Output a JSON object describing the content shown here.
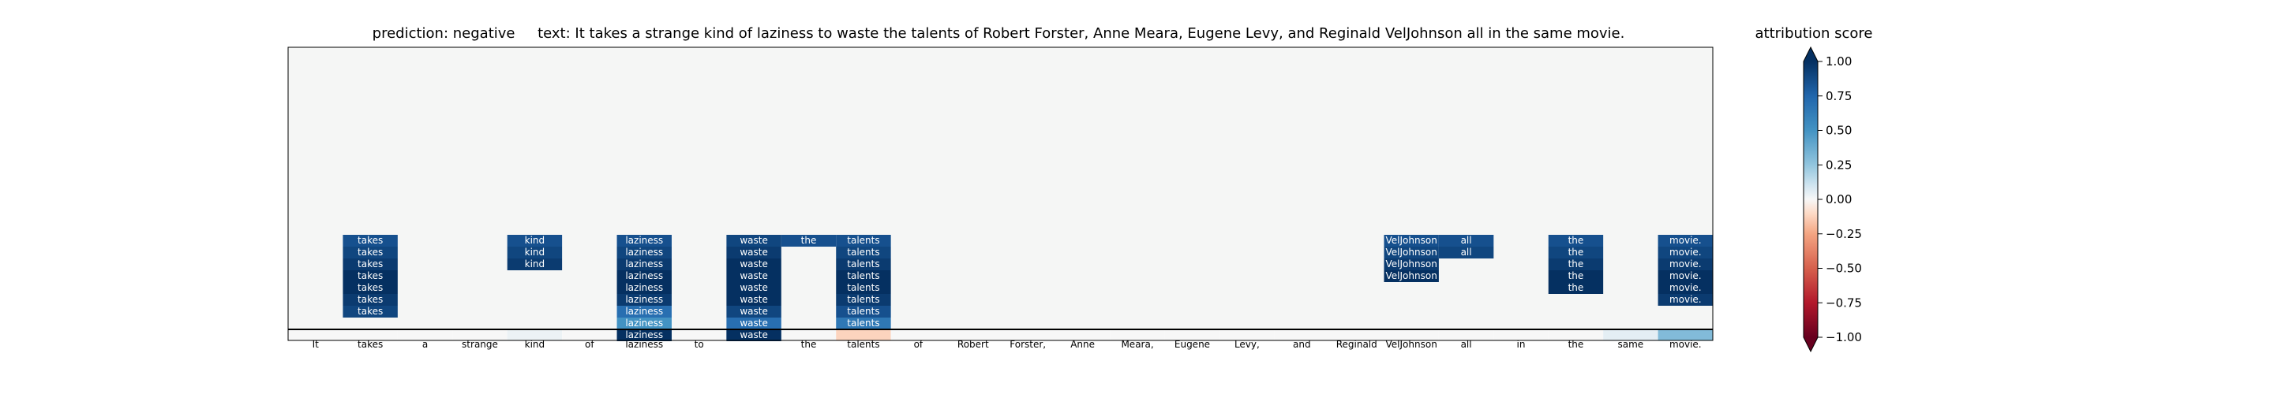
{
  "header": {
    "prediction_label": "prediction:",
    "prediction_value": "negative",
    "text_label": "text:",
    "text_value": "It takes a strange kind of laziness to waste the talents of Robert Forster, Anne Meara, Eugene Levy, and Reginald VelJohnson all in the same movie."
  },
  "chart_data": {
    "type": "heatmap",
    "tokens": [
      "It",
      "takes",
      "a",
      "strange",
      "kind",
      "of",
      "laziness",
      "to",
      "waste",
      "the",
      "talents",
      "of",
      "Robert",
      "Forster,",
      "Anne",
      "Meara,",
      "Eugene",
      "Levy,",
      "and",
      "Reginald",
      "VelJohnson",
      "all",
      "in",
      "the",
      "same",
      "movie."
    ],
    "token_row_scores": [
      0,
      0,
      0,
      0,
      0.03,
      0,
      0.25,
      0,
      0.55,
      0,
      -0.12,
      0,
      0,
      0,
      0,
      0,
      0,
      0,
      0,
      0,
      0,
      0,
      0,
      0,
      0.05,
      0.3
    ],
    "columns": [
      {
        "token_index": 1,
        "label": "takes",
        "scores": [
          0.85,
          0.9,
          0.95,
          1.0,
          1.0,
          0.95,
          0.9
        ]
      },
      {
        "token_index": 4,
        "label": "kind",
        "scores": [
          0.85,
          0.9,
          0.95
        ]
      },
      {
        "token_index": 6,
        "label": "laziness",
        "scores": [
          0.85,
          0.9,
          0.95,
          1.0,
          1.0,
          0.95,
          0.7,
          0.5,
          1.0
        ]
      },
      {
        "token_index": 8,
        "label": "waste",
        "scores": [
          0.9,
          0.95,
          1.0,
          1.0,
          1.0,
          1.0,
          0.9,
          0.7,
          1.0
        ]
      },
      {
        "token_index": 9,
        "label": "the",
        "scores": [
          0.85
        ]
      },
      {
        "token_index": 10,
        "label": "talents",
        "scores": [
          0.85,
          0.9,
          0.95,
          1.0,
          1.0,
          0.95,
          0.85,
          0.65
        ]
      },
      {
        "token_index": 20,
        "label": "VelJohnson",
        "scores": [
          0.85,
          0.9,
          0.95,
          1.0
        ]
      },
      {
        "token_index": 21,
        "label": "all",
        "scores": [
          0.85,
          0.9
        ]
      },
      {
        "token_index": 23,
        "label": "the",
        "scores": [
          0.85,
          0.9,
          0.95,
          1.0,
          1.0
        ]
      },
      {
        "token_index": 25,
        "label": "movie.",
        "scores": [
          0.85,
          0.9,
          0.95,
          1.0,
          1.0,
          0.95
        ]
      }
    ],
    "colorbar": {
      "title": "attribution score",
      "range": [
        -1.0,
        1.0
      ],
      "ticks": [
        "1.00",
        "0.75",
        "0.50",
        "0.25",
        "0.00",
        "−0.25",
        "−0.50",
        "−0.75",
        "−1.00"
      ],
      "colormap": "RdBu",
      "extend": "both"
    }
  }
}
